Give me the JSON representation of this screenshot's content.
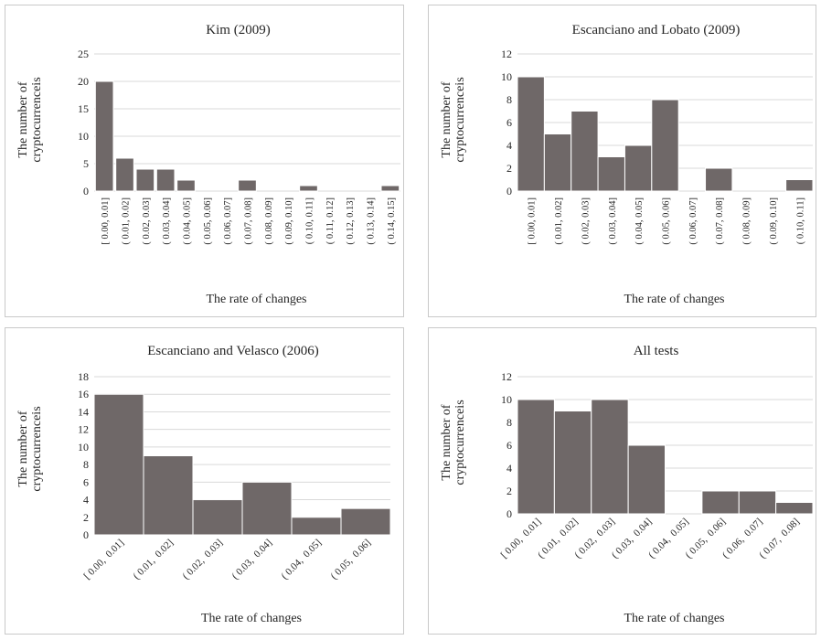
{
  "colors": {
    "bar": "#6f6868",
    "bar_edge": "#ffffff",
    "grid": "#d9d9d9",
    "text": "#262626",
    "panel_border": "#c9c9c9"
  },
  "chart_data": [
    {
      "type": "bar",
      "title": "Kim (2009)",
      "xlabel": "The rate of changes",
      "ylabel": [
        "The number of",
        "cryptocurrenceis"
      ],
      "ylim": [
        0,
        25
      ],
      "yticks": [
        0,
        5,
        10,
        15,
        20,
        25
      ],
      "grid": true,
      "legend": "none",
      "categories": [
        "[ 0.00, 0.01]",
        "( 0.01, 0.02]",
        "( 0.02, 0.03]",
        "( 0.03, 0.04]",
        "( 0.04, 0.05]",
        "( 0.05, 0.06]",
        "( 0.06, 0.07]",
        "( 0.07, 0.08]",
        "( 0.08, 0.09]",
        "( 0.09, 0.10]",
        "( 0.10, 0.11]",
        "( 0.11, 0.12]",
        "( 0.12, 0.13]",
        "( 0.13, 0.14]",
        "( 0.14, 0.15]"
      ],
      "values": [
        20,
        6,
        4,
        4,
        2,
        0,
        0,
        2,
        0,
        0,
        1,
        0,
        0,
        0,
        1
      ],
      "bar_style": "separate",
      "tick_label_rotation": "vertical"
    },
    {
      "type": "bar",
      "title": "Escanciano and Lobato (2009)",
      "xlabel": "The rate of changes",
      "ylabel": [
        "The number of",
        "cryptocurrenceis"
      ],
      "ylim": [
        0,
        12
      ],
      "yticks": [
        0,
        2,
        4,
        6,
        8,
        10,
        12
      ],
      "grid": true,
      "legend": "none",
      "categories": [
        "[ 0.00, 0.01]",
        "( 0.01, 0.02]",
        "( 0.02, 0.03]",
        "( 0.03, 0.04]",
        "( 0.04, 0.05]",
        "( 0.05, 0.06]",
        "( 0.06, 0.07]",
        "( 0.07, 0.08]",
        "( 0.08, 0.09]",
        "( 0.09, 0.10]",
        "( 0.10, 0.11]"
      ],
      "values": [
        10,
        5,
        7,
        3,
        4,
        8,
        0,
        2,
        0,
        0,
        1
      ],
      "bar_style": "touching",
      "tick_label_rotation": "vertical"
    },
    {
      "type": "bar",
      "title": "Escanciano and Velasco (2006)",
      "xlabel": "The rate of changes",
      "ylabel": [
        "The number of",
        "cryptocurrenceis"
      ],
      "ylim": [
        0,
        18
      ],
      "yticks": [
        0,
        2,
        4,
        6,
        8,
        10,
        12,
        14,
        16,
        18
      ],
      "grid": true,
      "legend": "none",
      "categories": [
        "[ 0.00,  0.01]",
        "( 0.01,  0.02]",
        "( 0.02,  0.03]",
        "( 0.03,  0.04]",
        "( 0.04,  0.05]",
        "( 0.05,  0.06]"
      ],
      "values": [
        16,
        9,
        4,
        6,
        2,
        3
      ],
      "bar_style": "touching",
      "tick_label_rotation": "diagonal"
    },
    {
      "type": "bar",
      "title": "All tests",
      "xlabel": "The rate of changes",
      "ylabel": [
        "The number of",
        "cryptocurrenceis"
      ],
      "ylim": [
        0,
        12
      ],
      "yticks": [
        0,
        2,
        4,
        6,
        8,
        10,
        12
      ],
      "grid": true,
      "legend": "none",
      "categories": [
        "[ 0.00,  0.01]",
        "( 0.01,  0.02]",
        "( 0.02,  0.03]",
        "( 0.03,  0.04]",
        "( 0.04,  0.05]",
        "( 0.05,  0.06]",
        "( 0.06,  0.07]",
        "( 0.07,  0.08]"
      ],
      "values": [
        10,
        9,
        10,
        6,
        0,
        2,
        2,
        1
      ],
      "bar_style": "touching",
      "tick_label_rotation": "diagonal"
    }
  ]
}
